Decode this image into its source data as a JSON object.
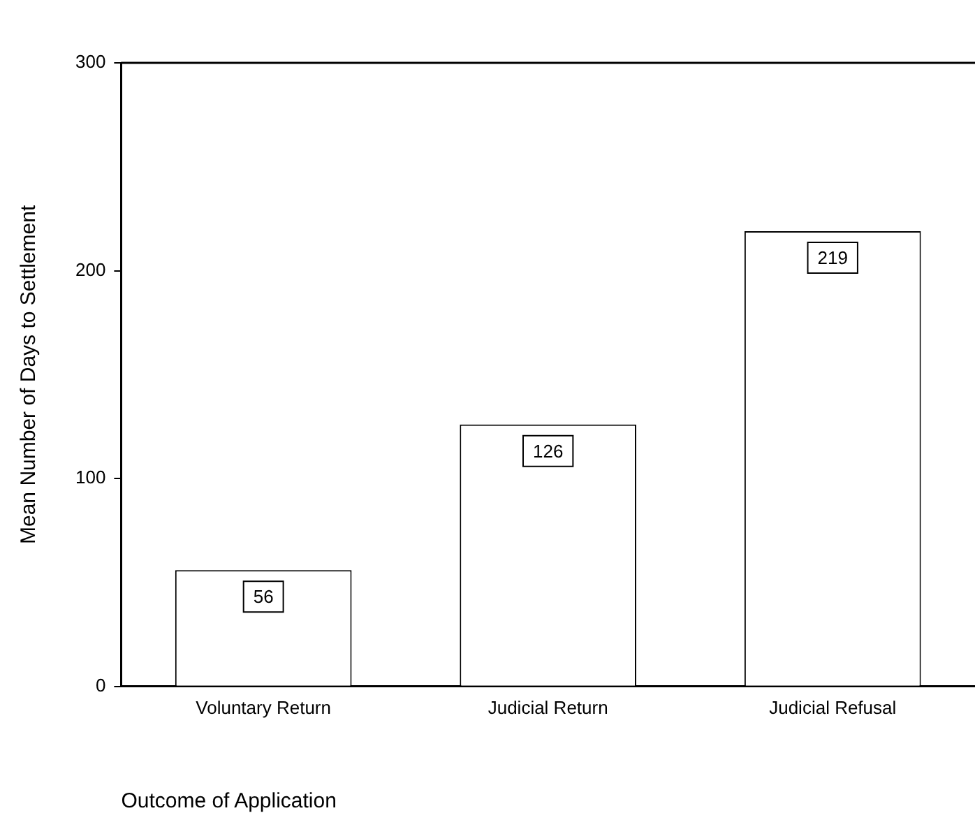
{
  "chart_data": {
    "type": "bar",
    "categories": [
      "Voluntary Return",
      "Judicial Return",
      "Judicial Refusal"
    ],
    "values": [
      56,
      126,
      219
    ],
    "color": "#ffffff",
    "ylim": [
      0,
      300
    ],
    "yticks": [
      0,
      100,
      200,
      300
    ],
    "ylabel": "Mean Number of Days to Settlement",
    "xlabel": "Outcome of Application",
    "data_labels": true,
    "grid": false,
    "legend": false
  }
}
